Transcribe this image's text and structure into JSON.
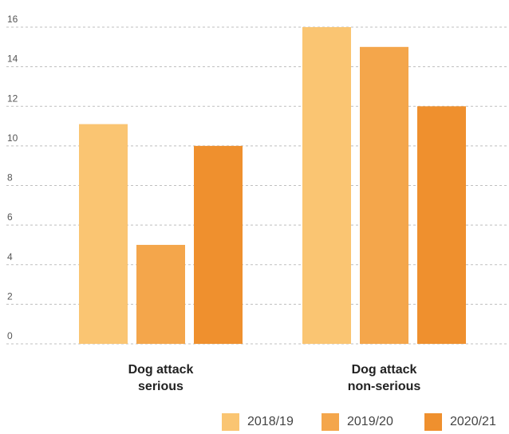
{
  "chart_data": {
    "type": "bar",
    "title": "",
    "xlabel": "",
    "ylabel": "",
    "ylim": [
      0,
      16
    ],
    "yticks": [
      "0",
      "2",
      "4",
      "6",
      "8",
      "10",
      "12",
      "14",
      "16"
    ],
    "grid": true,
    "categories": [
      [
        "Dog attack",
        "serious"
      ],
      [
        "Dog attack",
        "non-serious"
      ]
    ],
    "series": [
      {
        "name": "2018/19",
        "color": "#fac572",
        "values": [
          11.1,
          16
        ]
      },
      {
        "name": "2019/20",
        "color": "#f4a64b",
        "values": [
          5,
          15
        ]
      },
      {
        "name": "2020/21",
        "color": "#ef902e",
        "values": [
          10,
          12
        ]
      }
    ],
    "legend_position": "bottom-right"
  }
}
